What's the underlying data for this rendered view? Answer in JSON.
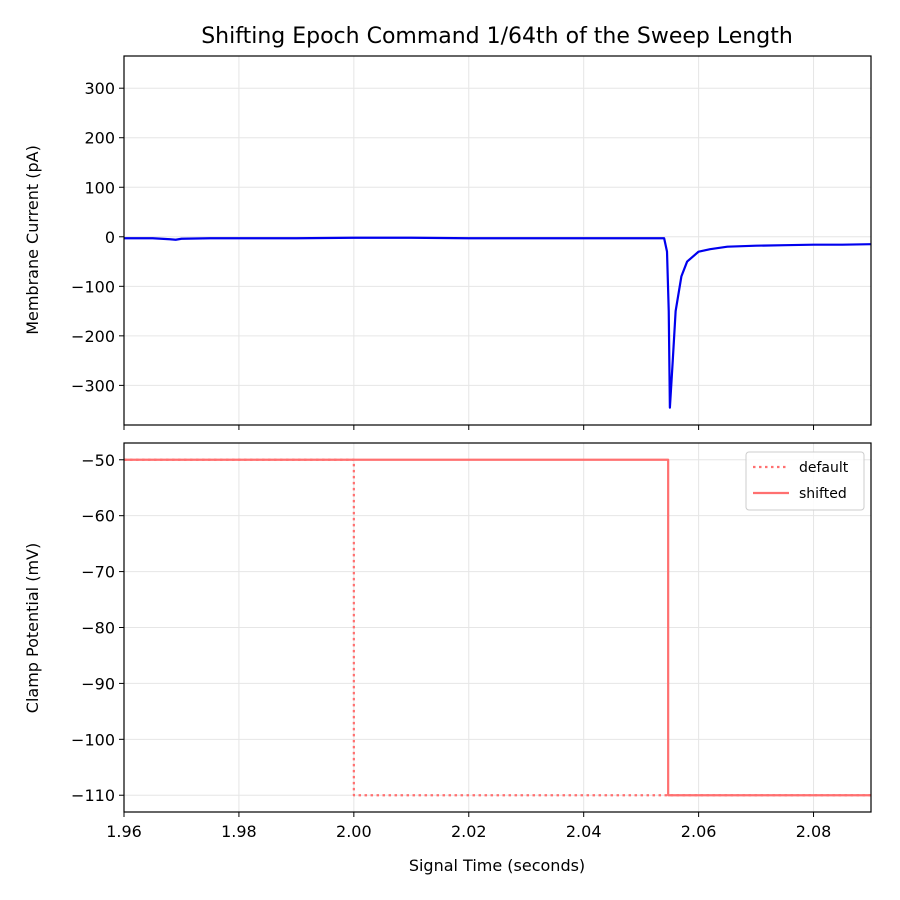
{
  "chart_data": [
    {
      "type": "line",
      "title": "Shifting Epoch Command 1/64th of the Sweep Length",
      "xlabel": "",
      "ylabel": "Membrane Current (pA)",
      "xlim": [
        1.96,
        2.09
      ],
      "ylim": [
        -380,
        365
      ],
      "x_ticks": [
        1.96,
        1.98,
        2.0,
        2.02,
        2.04,
        2.06,
        2.08
      ],
      "y_ticks": [
        300,
        200,
        100,
        0,
        -100,
        -200,
        -300
      ],
      "y_tick_labels": [
        "300",
        "200",
        "100",
        "0",
        "−100",
        "−200",
        "−300"
      ],
      "grid": true,
      "series": [
        {
          "color": "#0000ee",
          "x": [
            1.96,
            1.965,
            1.968,
            1.969,
            1.97,
            1.975,
            1.98,
            1.99,
            2.0,
            2.01,
            2.02,
            2.03,
            2.04,
            2.05,
            2.054,
            2.0545,
            2.0548,
            2.055,
            2.0555,
            2.056,
            2.057,
            2.058,
            2.06,
            2.062,
            2.065,
            2.07,
            2.075,
            2.08,
            2.085,
            2.09
          ],
          "y": [
            -3,
            -3,
            -5,
            -6,
            -4,
            -3,
            -3,
            -3,
            -2,
            -2,
            -3,
            -3,
            -3,
            -3,
            -3,
            -30,
            -150,
            -345,
            -250,
            -150,
            -80,
            -50,
            -30,
            -25,
            -20,
            -18,
            -17,
            -16,
            -16,
            -15
          ]
        }
      ]
    },
    {
      "type": "line",
      "xlabel": "Signal Time (seconds)",
      "ylabel": "Clamp Potential (mV)",
      "xlim": [
        1.96,
        2.09
      ],
      "ylim": [
        -113,
        -47
      ],
      "x_ticks": [
        1.96,
        1.98,
        2.0,
        2.02,
        2.04,
        2.06,
        2.08
      ],
      "x_tick_labels": [
        "1.96",
        "1.98",
        "2.00",
        "2.02",
        "2.04",
        "2.06",
        "2.08"
      ],
      "y_ticks": [
        -50,
        -60,
        -70,
        -80,
        -90,
        -100,
        -110
      ],
      "y_tick_labels": [
        "−50",
        "−60",
        "−70",
        "−80",
        "−90",
        "−100",
        "−110"
      ],
      "grid": true,
      "legend": {
        "placement": "top-right"
      },
      "series": [
        {
          "name": "default",
          "color": "#ff7070",
          "style": "dotted",
          "x": [
            1.96,
            2.0,
            2.0,
            2.09
          ],
          "y": [
            -50,
            -50,
            -110,
            -110
          ]
        },
        {
          "name": "shifted",
          "color": "#ff7070",
          "style": "solid",
          "x": [
            1.96,
            2.0547,
            2.0547,
            2.09
          ],
          "y": [
            -50,
            -50,
            -110,
            -110
          ]
        }
      ]
    }
  ]
}
